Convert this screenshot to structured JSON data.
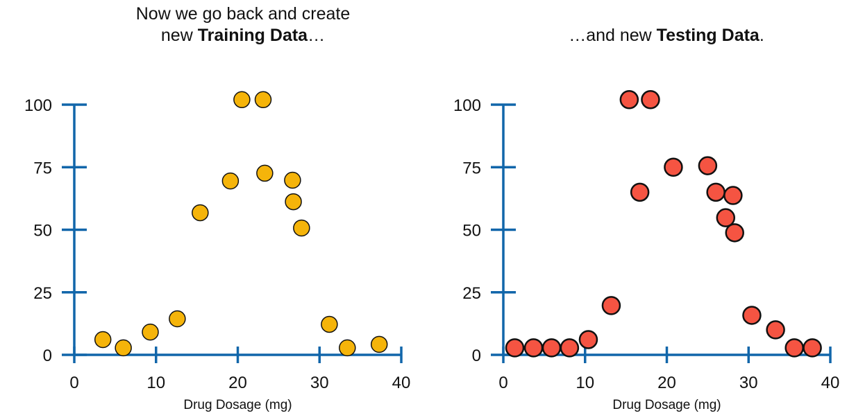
{
  "chart_data": [
    {
      "type": "scatter",
      "title_line1": "Now we go back and create",
      "title_line2_prefix": "new ",
      "title_bold": "Training Data",
      "title_suffix": "…",
      "xlabel": "Drug Dosage (mg)",
      "ylabel": "",
      "xlim": [
        0,
        40
      ],
      "ylim": [
        0,
        100
      ],
      "xticks": [
        0,
        10,
        20,
        30,
        40
      ],
      "yticks": [
        0,
        25,
        50,
        75,
        100
      ],
      "color": "#F5B40A",
      "points": [
        [
          3.5,
          6.1
        ],
        [
          6.0,
          2.8
        ],
        [
          9.3,
          9.1
        ],
        [
          12.6,
          14.4
        ],
        [
          15.4,
          56.8
        ],
        [
          19.1,
          69.5
        ],
        [
          20.5,
          102
        ],
        [
          23.1,
          102
        ],
        [
          23.3,
          72.6
        ],
        [
          26.7,
          69.8
        ],
        [
          26.8,
          61.2
        ],
        [
          27.8,
          50.7
        ],
        [
          31.2,
          12.2
        ],
        [
          33.4,
          2.8
        ],
        [
          37.3,
          4.2
        ]
      ]
    },
    {
      "type": "scatter",
      "title_line1": "",
      "title_line2_prefix": "…and new ",
      "title_bold": "Testing Data",
      "title_suffix": ".",
      "xlabel": "Drug Dosage (mg)",
      "ylabel": "",
      "xlim": [
        0,
        40
      ],
      "ylim": [
        0,
        100
      ],
      "xticks": [
        0,
        10,
        20,
        30,
        40
      ],
      "yticks": [
        0,
        25,
        50,
        75,
        100
      ],
      "color": "#F55442",
      "points": [
        [
          1.4,
          2.8
        ],
        [
          3.7,
          2.8
        ],
        [
          5.9,
          2.8
        ],
        [
          8.1,
          2.8
        ],
        [
          10.4,
          6.1
        ],
        [
          13.2,
          19.7
        ],
        [
          15.4,
          102
        ],
        [
          18.0,
          102
        ],
        [
          16.7,
          65
        ],
        [
          20.8,
          75
        ],
        [
          25.0,
          75.6
        ],
        [
          26.0,
          65
        ],
        [
          28.1,
          63.7
        ],
        [
          27.2,
          54.8
        ],
        [
          28.3,
          48.8
        ],
        [
          30.4,
          15.8
        ],
        [
          33.3,
          10
        ],
        [
          35.6,
          2.8
        ],
        [
          37.8,
          2.8
        ]
      ]
    }
  ]
}
